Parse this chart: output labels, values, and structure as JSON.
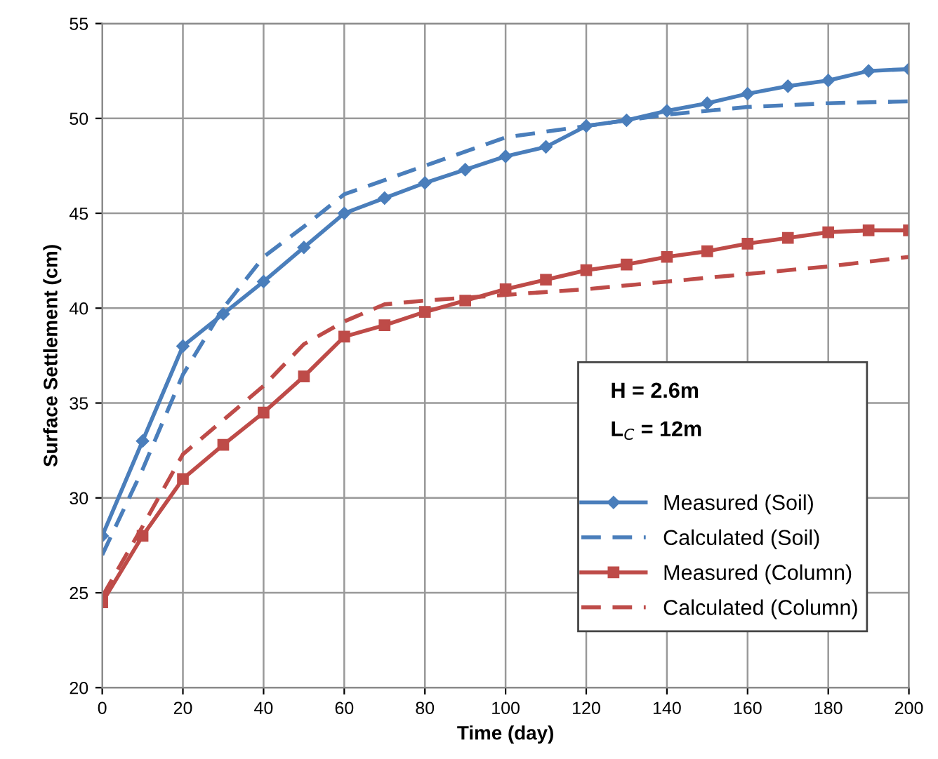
{
  "chart_data": {
    "type": "line",
    "xlabel": "Time (day)",
    "ylabel": "Surface Settlement (cm)",
    "xlim": [
      0,
      200
    ],
    "xticks": [
      0,
      20,
      40,
      60,
      80,
      100,
      120,
      140,
      160,
      180,
      200
    ],
    "ylim": [
      20,
      55
    ],
    "yticks": [
      20,
      25,
      30,
      35,
      40,
      45,
      50,
      55
    ],
    "grid": true,
    "legend": "bottom right",
    "annotations": [
      "H = 2.6m",
      "L$_{C}$ = 12m"
    ],
    "series": [
      {
        "name": "Measured (Soil)",
        "color": "#4a7ebb",
        "marker": "diamond",
        "line_style": "solid",
        "x": [
          0,
          10,
          20,
          30,
          40,
          50,
          60,
          70,
          80,
          90,
          100,
          110,
          120,
          130,
          140,
          150,
          160,
          170,
          180,
          190,
          200
        ],
        "values": [
          28,
          33,
          38,
          39.7,
          41.4,
          43.2,
          45,
          45.8,
          46.6,
          47.3,
          48,
          48.5,
          49.6,
          49.9,
          50.4,
          50.8,
          51.3,
          51.7,
          52,
          52.5,
          52.6
        ]
      },
      {
        "name": "Calculated (Soil)",
        "color": "#4a7ebb",
        "marker": "none",
        "line_style": "dashed",
        "x": [
          0,
          10,
          20,
          30,
          40,
          50,
          60,
          80,
          100,
          120,
          140,
          160,
          180,
          200
        ],
        "values": [
          27,
          31.5,
          36.5,
          40,
          42.7,
          44.3,
          46,
          47.5,
          49,
          49.6,
          50.2,
          50.6,
          50.8,
          50.9
        ]
      },
      {
        "name": "Measured (Column)",
        "color": "#be4b48",
        "marker": "square",
        "line_style": "solid",
        "x": [
          0,
          10,
          20,
          30,
          40,
          50,
          60,
          70,
          80,
          90,
          100,
          110,
          120,
          130,
          140,
          150,
          160,
          170,
          180,
          190,
          200
        ],
        "values": [
          24.5,
          28,
          31,
          32.8,
          34.5,
          36.4,
          38.5,
          39.1,
          39.8,
          40.4,
          41,
          41.5,
          42,
          42.3,
          42.7,
          43,
          43.4,
          43.7,
          44,
          44.1,
          44.1
        ]
      },
      {
        "name": "Calculated (Column)",
        "color": "#be4b48",
        "marker": "none",
        "line_style": "dashed",
        "x": [
          0,
          10,
          20,
          40,
          50,
          60,
          70,
          80,
          100,
          120,
          140,
          160,
          180,
          200
        ],
        "values": [
          24.8,
          28.5,
          32.3,
          35.9,
          38.1,
          39.3,
          40.2,
          40.4,
          40.7,
          41,
          41.4,
          41.8,
          42.2,
          42.7
        ]
      }
    ]
  }
}
